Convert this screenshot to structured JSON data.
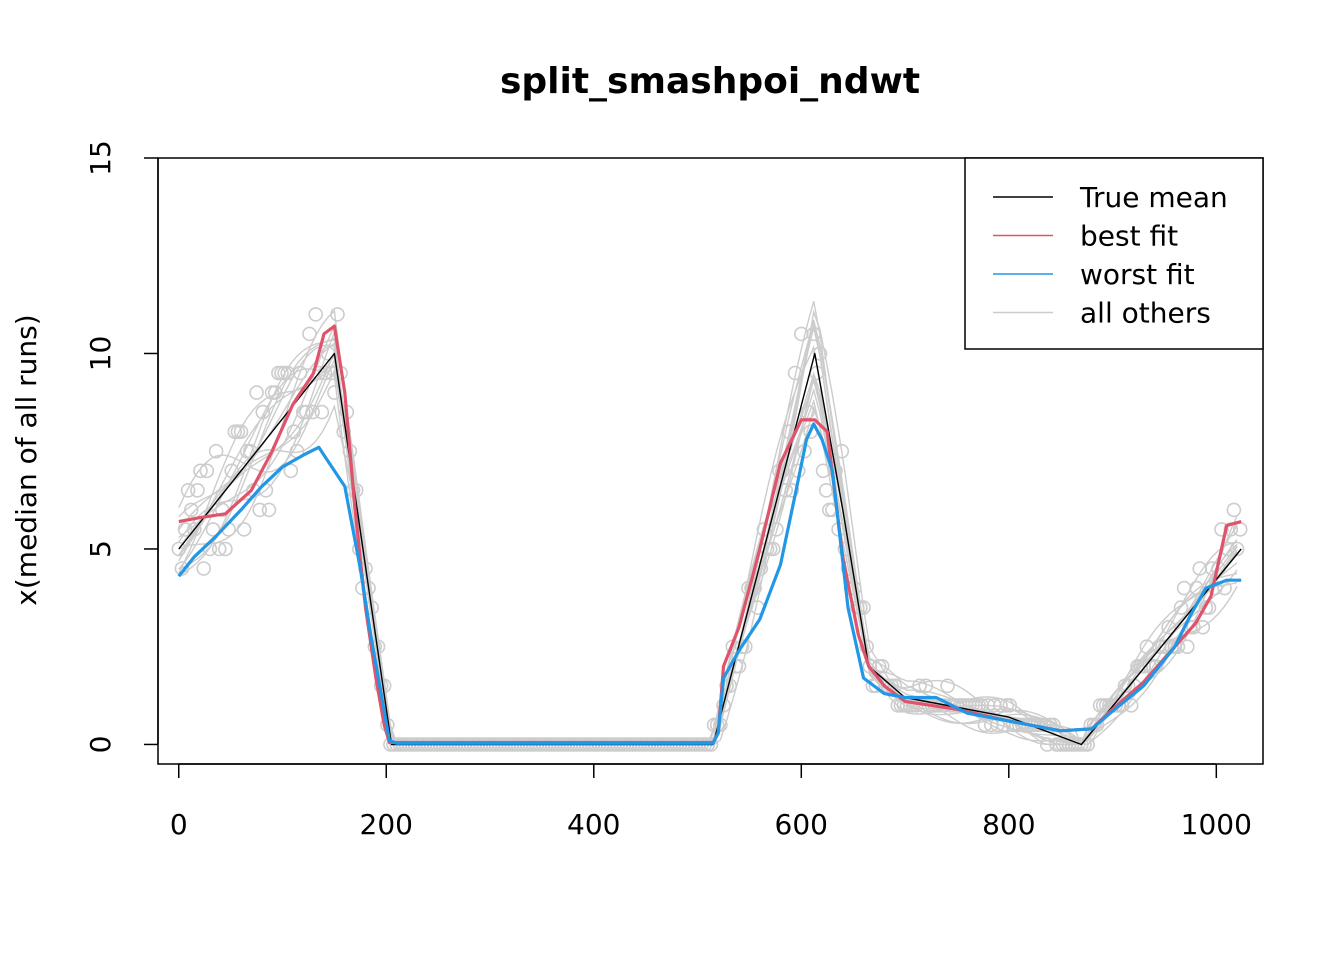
{
  "chart_data": {
    "type": "line",
    "title": "split_smashpoi_ndwt",
    "xlabel": "",
    "ylabel": "x(median of all runs)",
    "xlim": [
      -20,
      1045
    ],
    "ylim": [
      -0.5,
      15
    ],
    "xticks": [
      0,
      200,
      400,
      600,
      800,
      1000
    ],
    "yticks": [
      0,
      5,
      10,
      15
    ],
    "grid": false,
    "legend_position": "top-right",
    "legend": [
      "True mean",
      "best fit",
      "worst fit",
      "all others"
    ],
    "colors": {
      "true_mean": "#000000",
      "best_fit": "#DF536B",
      "worst_fit": "#2297E6",
      "others": "#CCCCCC",
      "observed_points": "#CCCCCC"
    },
    "series": [
      {
        "name": "True mean",
        "x": [
          0,
          150,
          205,
          515,
          613,
          640,
          665,
          700,
          800,
          870,
          1024
        ],
        "y": [
          5,
          10,
          0,
          0,
          10,
          6,
          2,
          1.2,
          0.7,
          0,
          5
        ]
      },
      {
        "name": "best fit",
        "x": [
          0,
          20,
          45,
          70,
          90,
          110,
          130,
          140,
          150,
          160,
          170,
          180,
          190,
          198,
          203,
          210,
          515,
          520,
          525,
          540,
          560,
          580,
          600,
          613,
          625,
          640,
          655,
          665,
          680,
          700,
          750,
          800,
          850,
          880,
          900,
          930,
          960,
          980,
          995,
          1010,
          1024
        ],
        "y": [
          5.7,
          5.8,
          5.9,
          6.5,
          7.5,
          8.7,
          9.5,
          10.5,
          10.7,
          9.0,
          6.0,
          3.5,
          1.7,
          0.5,
          0.05,
          0.05,
          0.05,
          0.3,
          2.0,
          3.0,
          5.0,
          7.2,
          8.3,
          8.3,
          8.0,
          4.8,
          2.8,
          2.0,
          1.5,
          1.1,
          0.9,
          0.6,
          0.35,
          0.4,
          0.9,
          1.6,
          2.5,
          3.1,
          3.8,
          5.6,
          5.7
        ]
      },
      {
        "name": "worst fit",
        "x": [
          0,
          15,
          35,
          60,
          80,
          100,
          120,
          135,
          145,
          160,
          175,
          185,
          195,
          203,
          210,
          515,
          520,
          525,
          540,
          560,
          580,
          595,
          605,
          612,
          620,
          630,
          645,
          660,
          680,
          700,
          730,
          760,
          800,
          850,
          880,
          900,
          930,
          960,
          975,
          990,
          1010,
          1024
        ],
        "y": [
          4.3,
          4.8,
          5.3,
          6.0,
          6.6,
          7.1,
          7.4,
          7.6,
          7.2,
          6.6,
          4.5,
          2.8,
          1.3,
          0.1,
          0.03,
          0.03,
          0.3,
          1.7,
          2.4,
          3.2,
          4.6,
          6.5,
          7.8,
          8.2,
          7.8,
          7.0,
          3.5,
          1.7,
          1.3,
          1.2,
          1.2,
          0.8,
          0.6,
          0.35,
          0.4,
          0.85,
          1.5,
          2.5,
          3.3,
          4.0,
          4.2,
          4.2
        ]
      }
    ],
    "others_count": 14,
    "observed_points_count": 1024
  }
}
